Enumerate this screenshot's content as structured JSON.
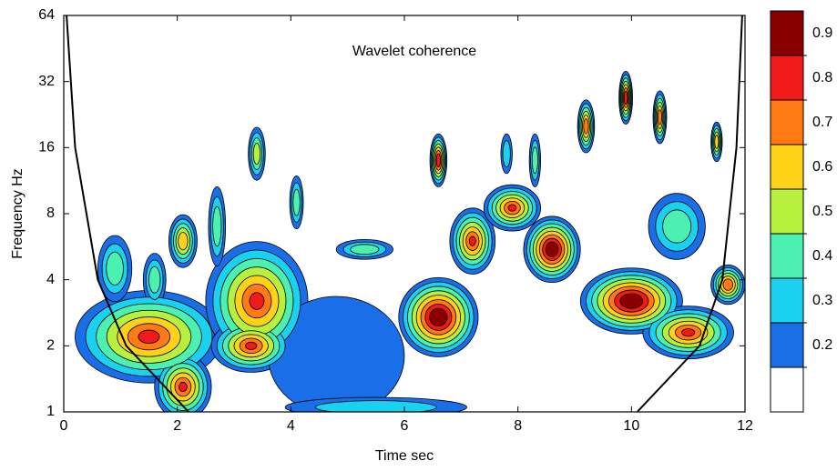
{
  "chart_data": {
    "type": "contour",
    "title": "Wavelet coherence",
    "x_label": "Time sec",
    "y_label": "Frequency Hz",
    "xlim": [
      0,
      12
    ],
    "xticks": [
      0,
      2,
      4,
      6,
      8,
      10,
      12
    ],
    "ylim": [
      1,
      64
    ],
    "yticks": [
      1,
      2,
      4,
      8,
      16,
      32,
      64
    ],
    "y_scale": "log2",
    "clim": [
      0.1,
      1.0
    ],
    "cticks": [
      0.2,
      0.3,
      0.4,
      0.5,
      0.6,
      0.7,
      0.8,
      0.9
    ],
    "colors": [
      "#ffffff",
      "#1a6ee8",
      "#1ad2f0",
      "#4cf0b0",
      "#b8f040",
      "#ffd21a",
      "#ff7a14",
      "#f01a1a",
      "#8a0000"
    ],
    "blobs": [
      {
        "x": 1.5,
        "y": 2.2,
        "rx": 1.3,
        "ry": 0.7,
        "level": 0.85
      },
      {
        "x": 2.1,
        "y": 1.3,
        "rx": 0.5,
        "ry": 0.5,
        "level": 0.85
      },
      {
        "x": 3.4,
        "y": 3.2,
        "rx": 0.9,
        "ry": 0.9,
        "level": 0.85
      },
      {
        "x": 3.3,
        "y": 2.0,
        "rx": 0.7,
        "ry": 0.4,
        "level": 0.85
      },
      {
        "x": 4.8,
        "y": 1.8,
        "rx": 1.2,
        "ry": 0.9,
        "level": 0.25
      },
      {
        "x": 6.6,
        "y": 2.7,
        "rx": 0.7,
        "ry": 0.6,
        "level": 0.95
      },
      {
        "x": 7.2,
        "y": 6,
        "rx": 0.4,
        "ry": 0.5,
        "level": 0.85
      },
      {
        "x": 7.9,
        "y": 8.5,
        "rx": 0.5,
        "ry": 0.35,
        "level": 0.85
      },
      {
        "x": 8.6,
        "y": 5.5,
        "rx": 0.5,
        "ry": 0.5,
        "level": 0.95
      },
      {
        "x": 10,
        "y": 3.2,
        "rx": 0.9,
        "ry": 0.5,
        "level": 0.95
      },
      {
        "x": 11,
        "y": 2.3,
        "rx": 0.8,
        "ry": 0.4,
        "level": 0.85
      },
      {
        "x": 5.3,
        "y": 5.5,
        "rx": 0.5,
        "ry": 0.15,
        "level": 0.5
      },
      {
        "x": 3.4,
        "y": 15,
        "rx": 0.15,
        "ry": 0.4,
        "level": 0.6
      },
      {
        "x": 6.6,
        "y": 14,
        "rx": 0.15,
        "ry": 0.4,
        "level": 0.9
      },
      {
        "x": 9.9,
        "y": 27,
        "rx": 0.12,
        "ry": 0.4,
        "level": 0.9
      },
      {
        "x": 10.5,
        "y": 22,
        "rx": 0.12,
        "ry": 0.4,
        "level": 0.8
      },
      {
        "x": 11.5,
        "y": 17,
        "rx": 0.1,
        "ry": 0.3,
        "level": 0.7
      },
      {
        "x": 2.1,
        "y": 6,
        "rx": 0.25,
        "ry": 0.4,
        "level": 0.7
      },
      {
        "x": 0.9,
        "y": 4.5,
        "rx": 0.3,
        "ry": 0.5,
        "level": 0.5
      },
      {
        "x": 1.6,
        "y": 4,
        "rx": 0.2,
        "ry": 0.4,
        "level": 0.5
      },
      {
        "x": 10.8,
        "y": 7,
        "rx": 0.5,
        "ry": 0.5,
        "level": 0.5
      },
      {
        "x": 11.7,
        "y": 3.8,
        "rx": 0.3,
        "ry": 0.3,
        "level": 0.8
      },
      {
        "x": 5.5,
        "y": 1.05,
        "rx": 1.6,
        "ry": 0.15,
        "level": 0.4
      },
      {
        "x": 9.2,
        "y": 20,
        "rx": 0.15,
        "ry": 0.4,
        "level": 0.8
      },
      {
        "x": 2.7,
        "y": 7,
        "rx": 0.15,
        "ry": 0.6,
        "level": 0.5
      },
      {
        "x": 4.1,
        "y": 9,
        "rx": 0.12,
        "ry": 0.4,
        "level": 0.5
      },
      {
        "x": 8.3,
        "y": 14,
        "rx": 0.1,
        "ry": 0.4,
        "level": 0.5
      },
      {
        "x": 7.8,
        "y": 15,
        "rx": 0.1,
        "ry": 0.3,
        "level": 0.4
      }
    ],
    "coi": {
      "x": [
        0.05,
        0.2,
        0.6,
        1.1,
        2.2,
        null,
        10.1,
        11.2,
        11.6,
        11.85,
        11.95
      ],
      "y": [
        64,
        16,
        4,
        2,
        1,
        null,
        1,
        2,
        4,
        16,
        64
      ]
    }
  }
}
